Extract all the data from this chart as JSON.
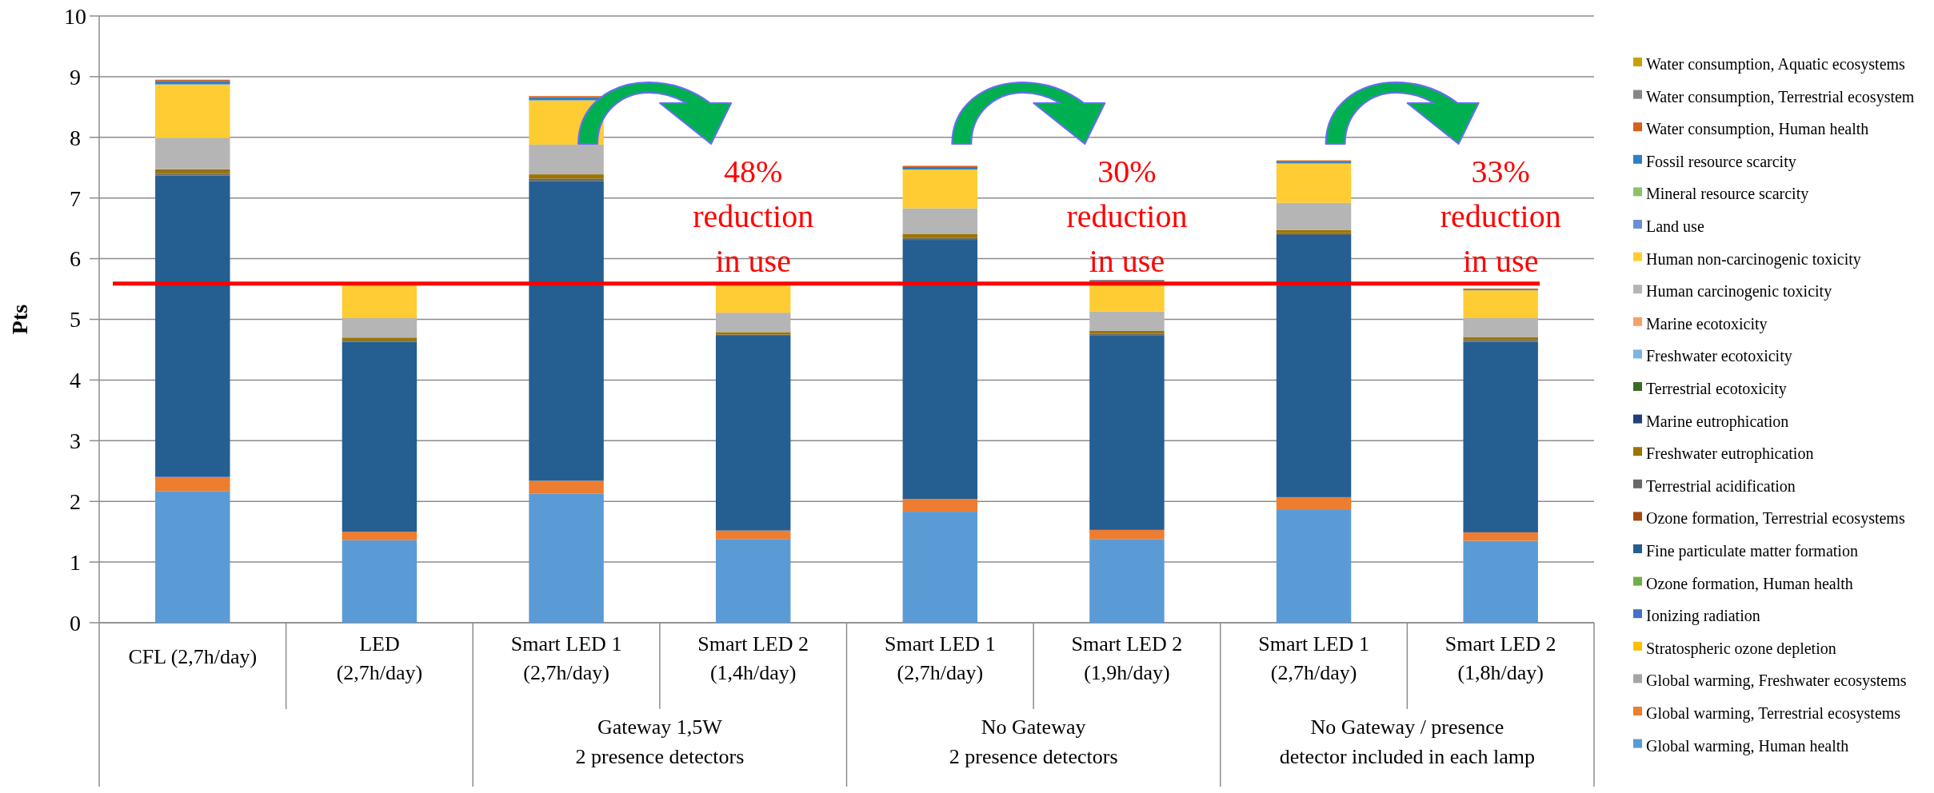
{
  "chart_data": {
    "type": "bar",
    "stacked": true,
    "ylabel": "Pts",
    "categories": [
      "CFL (2,7h/day)",
      "LED\n(2,7h/day)",
      "Smart LED 1\n(2,7h/day)",
      "Smart LED 2\n(1,4h/day)",
      "Smart LED 1\n(2,7h/day)",
      "Smart LED 2\n(1,9h/day)",
      "Smart LED 1\n(2,7h/day)",
      "Smart LED 2\n(1,8h/day)"
    ],
    "ylim": [
      0,
      10
    ],
    "yticks": [
      0,
      1,
      2,
      3,
      4,
      5,
      6,
      7,
      8,
      9,
      10
    ],
    "grid": "y",
    "legend": "right",
    "series": [
      {
        "name": "Global warming, Human health",
        "color": "#5b9bd5",
        "values": [
          2.17,
          1.36,
          2.13,
          1.38,
          1.83,
          1.38,
          1.87,
          1.35
        ]
      },
      {
        "name": "Global warming, Terrestrial ecosystems",
        "color": "#ed7d31",
        "values": [
          0.23,
          0.14,
          0.21,
          0.14,
          0.21,
          0.15,
          0.2,
          0.14
        ]
      },
      {
        "name": "Global warming, Freshwater ecosystems",
        "color": "#a5a5a5",
        "values": [
          0,
          0,
          0,
          0,
          0,
          0,
          0,
          0
        ]
      },
      {
        "name": "Stratospheric ozone depletion",
        "color": "#ffc000",
        "values": [
          0,
          0,
          0,
          0,
          0,
          0,
          0,
          0
        ]
      },
      {
        "name": "Ionizing radiation",
        "color": "#4472c4",
        "values": [
          0.01,
          0,
          0,
          0,
          0,
          0,
          0,
          0
        ]
      },
      {
        "name": "Ozone formation, Human health",
        "color": "#70ad47",
        "values": [
          0,
          0,
          0,
          0,
          0,
          0,
          0,
          0
        ]
      },
      {
        "name": "Fine particulate matter formation",
        "color": "#255e91",
        "values": [
          4.96,
          3.13,
          4.94,
          3.21,
          4.27,
          3.21,
          4.32,
          3.14
        ]
      },
      {
        "name": "Ozone formation, Terrestrial ecosystems",
        "color": "#a44a10",
        "values": [
          0,
          0,
          0,
          0,
          0,
          0,
          0,
          0
        ]
      },
      {
        "name": "Terrestrial acidification",
        "color": "#686868",
        "values": [
          0.03,
          0.02,
          0.04,
          0.02,
          0.03,
          0.02,
          0.03,
          0.03
        ]
      },
      {
        "name": "Freshwater eutrophication",
        "color": "#9b7500",
        "values": [
          0.06,
          0.05,
          0.07,
          0.04,
          0.07,
          0.05,
          0.05,
          0.05
        ]
      },
      {
        "name": "Marine eutrophication",
        "color": "#233f7a",
        "values": [
          0.01,
          0,
          0,
          0,
          0,
          0,
          0,
          0
        ]
      },
      {
        "name": "Terrestrial ecotoxicity",
        "color": "#3d6b26",
        "values": [
          0,
          0,
          0,
          0,
          0,
          0,
          0,
          0
        ]
      },
      {
        "name": "Freshwater ecotoxicity",
        "color": "#7eb4e2",
        "values": [
          0,
          0,
          0,
          0,
          0,
          0,
          0,
          0
        ]
      },
      {
        "name": "Marine ecotoxicity",
        "color": "#f4a06a",
        "values": [
          0.01,
          0,
          0,
          0,
          0,
          0,
          0,
          0
        ]
      },
      {
        "name": "Human carcinogenic toxicity",
        "color": "#b5b5b5",
        "values": [
          0.51,
          0.32,
          0.49,
          0.32,
          0.42,
          0.32,
          0.45,
          0.31
        ]
      },
      {
        "name": "Human non-carcinogenic toxicity",
        "color": "#ffcc33",
        "values": [
          0.88,
          0.54,
          0.73,
          0.46,
          0.64,
          0.49,
          0.65,
          0.46
        ]
      },
      {
        "name": "Land use",
        "color": "#6b8fd6",
        "values": [
          0.01,
          0,
          0,
          0,
          0,
          0,
          0,
          0
        ]
      },
      {
        "name": "Mineral resource scarcity",
        "color": "#8cc36a",
        "values": [
          0,
          0,
          0,
          0,
          0,
          0,
          0,
          0
        ]
      },
      {
        "name": "Fossil resource scarcity",
        "color": "#2e7fc6",
        "values": [
          0.05,
          null,
          0.05,
          null,
          0.04,
          0.02,
          0.03,
          0.02
        ]
      },
      {
        "name": "Water consumption, Human health",
        "color": "#d6601a",
        "values": [
          0.02,
          0,
          0.02,
          0,
          0.02,
          0.01,
          0.02,
          0.01
        ]
      },
      {
        "name": "Water consumption, Terrestrial ecosystem",
        "color": "#878787",
        "values": [
          0,
          0,
          0,
          0,
          0,
          0,
          0,
          0
        ]
      },
      {
        "name": "Water consumption, Aquatic ecosystems",
        "color": "#c8a00c",
        "values": [
          0,
          0,
          0,
          0,
          0,
          0,
          0,
          0
        ]
      }
    ],
    "ref_lines": [
      {
        "axis": "y",
        "value": 5.59,
        "color": "#ff0000"
      }
    ],
    "annotations": [
      "48%\nreduction\nin use",
      "30%\nreduction\nin use",
      "33%\nreduction\nin use",
      "Gateway 1,5W\n2 presence detectors",
      "No Gateway\n2 presence detectors",
      "No Gateway / presence\ndetector included in each lamp"
    ]
  }
}
